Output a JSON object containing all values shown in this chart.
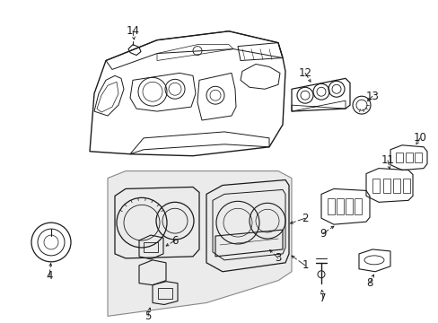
{
  "background_color": "#ffffff",
  "line_color": "#1a1a1a",
  "fig_width": 4.89,
  "fig_height": 3.6,
  "dpi": 100,
  "shade_color": "#d8d8d8",
  "label_fontsize": 8.5
}
